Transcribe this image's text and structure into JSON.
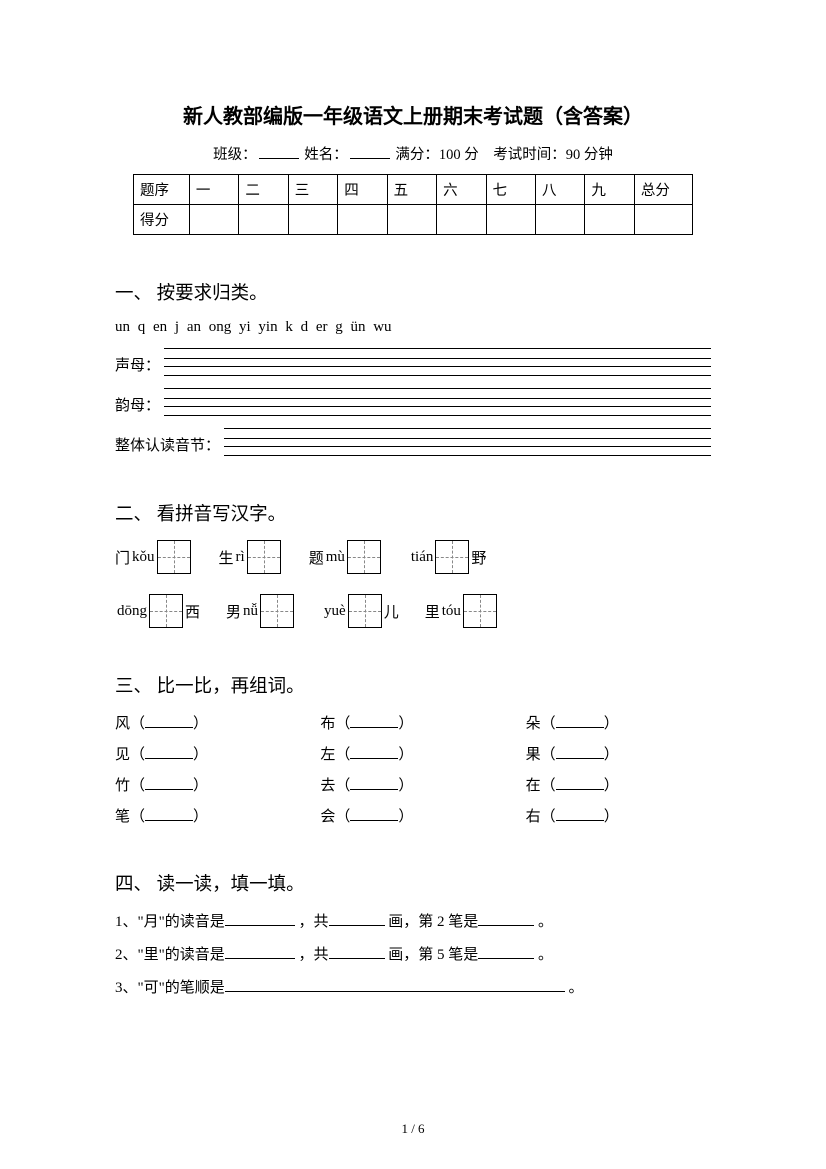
{
  "title": "新人教部编版一年级语文上册期末考试题（含答案）",
  "meta": {
    "class_label": "班级：",
    "name_label": "姓名：",
    "full_score_label": "满分：",
    "full_score_value": "100 分",
    "time_label": "考试时间：",
    "time_value": "90 分钟"
  },
  "score_table": {
    "row1_label": "题序",
    "row2_label": "得分",
    "cols": [
      "一",
      "二",
      "三",
      "四",
      "五",
      "六",
      "七",
      "八",
      "九"
    ],
    "total": "总分"
  },
  "sec1": {
    "heading": "一、 按要求归类。",
    "pinyin_list": "un   q   en   j   an   ong   yi   yin   k   d   er   g   ün   wu",
    "label_shengmu": "声母：",
    "label_yunmu": "韵母：",
    "label_zhengti": "整体认读音节："
  },
  "sec2": {
    "heading": "二、 看拼音写汉字。",
    "items": [
      {
        "pre": "门",
        "py": "kǒu",
        "boxes": 1,
        "post": ""
      },
      {
        "pre": "生",
        "py": "rì",
        "boxes": 1,
        "post": ""
      },
      {
        "pre": "题",
        "py": "mù",
        "boxes": 1,
        "post": ""
      },
      {
        "pre": "",
        "py": "tián",
        "boxes": 1,
        "post": "野"
      },
      {
        "pre": "",
        "py": "dōng",
        "boxes": 1,
        "post": "西"
      },
      {
        "pre": "男",
        "py": "nǚ",
        "boxes": 1,
        "post": ""
      },
      {
        "pre": "",
        "py": "yuè",
        "boxes": 1,
        "post": "儿"
      },
      {
        "pre": "里",
        "py": "tóu",
        "boxes": 1,
        "post": ""
      }
    ]
  },
  "sec3": {
    "heading": "三、 比一比，再组词。",
    "items": [
      "风",
      "布",
      "朵",
      "见",
      "左",
      "果",
      "竹",
      "去",
      "在",
      "笔",
      "会",
      "右"
    ]
  },
  "sec4": {
    "heading": "四、 读一读，填一填。",
    "q1_a": "1、\"月\"的读音是",
    "q1_b": "，共",
    "q1_c": "画，第 2 笔是",
    "q1_d": "。",
    "q2_a": "2、\"里\"的读音是",
    "q2_b": "，共",
    "q2_c": "画，第 5 笔是",
    "q2_d": "。",
    "q3_a": "3、\"可\"的笔顺是",
    "q3_b": "。"
  },
  "page_num": "1 / 6"
}
